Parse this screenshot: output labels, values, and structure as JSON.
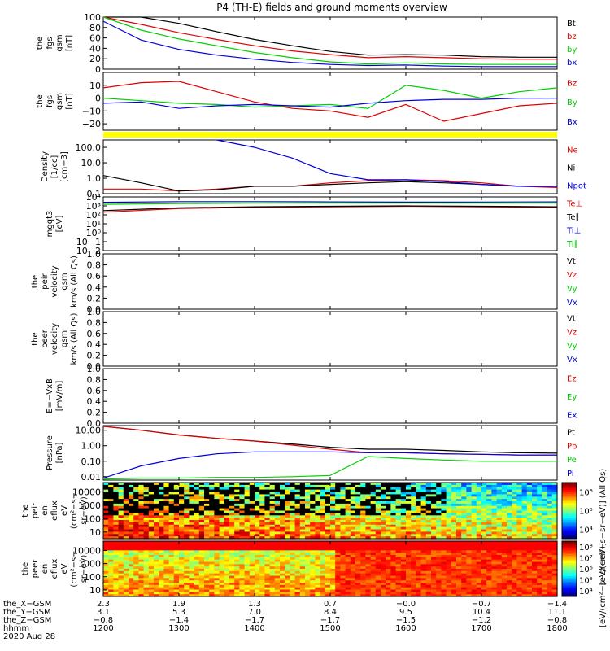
{
  "title": "P4 (TH-E) fields and ground moments overview",
  "colors": {
    "black": "#000000",
    "red": "#e00000",
    "green": "#00d000",
    "blue": "#0000dd",
    "yellow": "#ffff00"
  },
  "chart_data": [
    {
      "id": "fgs-mag",
      "type": "line",
      "ylabel": [
        "the",
        "fgs",
        "gsm",
        "[nT]"
      ],
      "ylim": [
        0,
        100
      ],
      "yticks": [
        "0",
        "20",
        "40",
        "60",
        "80",
        "100"
      ],
      "legend": [
        {
          "name": "Bt",
          "color": "black"
        },
        {
          "name": "bz",
          "color": "red"
        },
        {
          "name": "by",
          "color": "green"
        },
        {
          "name": "bx",
          "color": "blue"
        }
      ],
      "x": [
        1200,
        1250,
        1300,
        1350,
        1400,
        1450,
        1500,
        1550,
        1600,
        1650,
        1700,
        1750,
        1800
      ],
      "series": [
        {
          "name": "Bt",
          "color": "black",
          "values": [
            100,
            100,
            88,
            72,
            57,
            45,
            34,
            27,
            28,
            27,
            24,
            23,
            23
          ]
        },
        {
          "name": "bz",
          "color": "red",
          "values": [
            100,
            86,
            70,
            57,
            45,
            35,
            28,
            22,
            24,
            22,
            20,
            19,
            19
          ]
        },
        {
          "name": "by",
          "color": "green",
          "values": [
            100,
            75,
            58,
            45,
            32,
            22,
            14,
            10,
            12,
            10,
            9,
            9,
            9
          ]
        },
        {
          "name": "bx",
          "color": "blue",
          "values": [
            92,
            56,
            38,
            27,
            19,
            13,
            9,
            7,
            8,
            6,
            5,
            5,
            5
          ]
        }
      ]
    },
    {
      "id": "fgs-comp",
      "type": "line",
      "ylabel": [
        "the",
        "fgs",
        "gsm",
        "[nT]"
      ],
      "ylim": [
        -25,
        20
      ],
      "yticks": [
        "−20",
        "−10",
        "0",
        "10"
      ],
      "legend": [
        {
          "name": "Bz",
          "color": "red"
        },
        {
          "name": "By",
          "color": "green"
        },
        {
          "name": "Bx",
          "color": "blue"
        }
      ],
      "x": [
        1200,
        1250,
        1300,
        1350,
        1400,
        1450,
        1500,
        1550,
        1600,
        1650,
        1700,
        1750,
        1800
      ],
      "series": [
        {
          "name": "Bz",
          "color": "red",
          "values": [
            8,
            12,
            13,
            5,
            -3,
            -8,
            -10,
            -15,
            -5,
            -18,
            -12,
            -6,
            -4
          ]
        },
        {
          "name": "By",
          "color": "green",
          "values": [
            0,
            -2,
            -4,
            -5,
            -7,
            -6,
            -5,
            -8,
            10,
            6,
            0,
            5,
            8
          ]
        },
        {
          "name": "Bx",
          "color": "blue",
          "values": [
            -4,
            -3,
            -8,
            -6,
            -5,
            -6,
            -7,
            -4,
            -2,
            -1,
            -1,
            0,
            0
          ]
        }
      ]
    },
    {
      "id": "density",
      "type": "line",
      "scale": "log",
      "ylabel": [
        "Density",
        "[1/cc]",
        "[cm−3]"
      ],
      "ylim": [
        0.1,
        300
      ],
      "yticks": [
        "0.1",
        "1.0",
        "10.0",
        "100.0"
      ],
      "legend": [
        {
          "name": "Ne",
          "color": "red"
        },
        {
          "name": "Ni",
          "color": "black"
        },
        {
          "name": "Npot",
          "color": "blue"
        }
      ],
      "x": [
        1200,
        1250,
        1300,
        1350,
        1400,
        1450,
        1500,
        1550,
        1600,
        1650,
        1700,
        1750,
        1800
      ],
      "series": [
        {
          "name": "Ne",
          "color": "red",
          "values": [
            0.2,
            0.2,
            0.15,
            0.2,
            0.3,
            0.3,
            0.5,
            0.7,
            0.8,
            0.7,
            0.5,
            0.3,
            0.25
          ]
        },
        {
          "name": "Ni",
          "color": "black",
          "values": [
            1.5,
            0.5,
            0.15,
            0.18,
            0.3,
            0.3,
            0.4,
            0.5,
            0.6,
            0.5,
            0.4,
            0.3,
            0.3
          ]
        },
        {
          "name": "Npot",
          "color": "blue",
          "values": [
            null,
            null,
            null,
            300,
            100,
            20,
            2,
            0.8,
            0.8,
            0.6,
            0.4,
            0.3,
            0.3
          ]
        }
      ]
    },
    {
      "id": "temperature",
      "type": "line",
      "scale": "log",
      "ylabel": [
        "mgqt3",
        "[eV]"
      ],
      "ylim": [
        0.01,
        10000
      ],
      "yticks": [
        "10−2",
        "10−1",
        "10⁰",
        "10¹",
        "10²",
        "10³",
        "10⁴"
      ],
      "legend": [
        {
          "name": "Te⊥",
          "color": "red"
        },
        {
          "name": "Te∥",
          "color": "black"
        },
        {
          "name": "Ti⊥",
          "color": "blue"
        },
        {
          "name": "Ti∥",
          "color": "green"
        }
      ],
      "x": [
        1200,
        1300,
        1400,
        1500,
        1600,
        1700,
        1800
      ],
      "series": [
        {
          "name": "Te⊥",
          "color": "red",
          "values": [
            200,
            500,
            700,
            800,
            900,
            800,
            700
          ]
        },
        {
          "name": "Te∥",
          "color": "black",
          "values": [
            300,
            600,
            800,
            900,
            1000,
            900,
            800
          ]
        },
        {
          "name": "Ti⊥",
          "color": "blue",
          "values": [
            2500,
            3000,
            3000,
            2800,
            2600,
            2700,
            2800
          ]
        },
        {
          "name": "Ti∥",
          "color": "green",
          "values": [
            1500,
            1800,
            2000,
            2000,
            2000,
            2000,
            2000
          ]
        }
      ]
    },
    {
      "id": "peir-velocity",
      "type": "line",
      "ylabel": [
        "the",
        "peir",
        "velocity",
        "gsm",
        "km/s (All Qs)"
      ],
      "ylim": [
        0.0,
        1.0
      ],
      "yticks": [
        "0.0",
        "0.2",
        "0.4",
        "0.6",
        "0.8",
        "1.0"
      ],
      "legend": [
        {
          "name": "Vt",
          "color": "black"
        },
        {
          "name": "Vz",
          "color": "red"
        },
        {
          "name": "Vy",
          "color": "green"
        },
        {
          "name": "Vx",
          "color": "blue"
        }
      ],
      "series": []
    },
    {
      "id": "peer-velocity",
      "type": "line",
      "ylabel": [
        "the",
        "peer",
        "velocity",
        "gsm",
        "km/s (All Qs)"
      ],
      "ylim": [
        0.0,
        1.0
      ],
      "yticks": [
        "0.0",
        "0.2",
        "0.4",
        "0.6",
        "0.8",
        "1.0"
      ],
      "legend": [
        {
          "name": "Vt",
          "color": "black"
        },
        {
          "name": "Vz",
          "color": "red"
        },
        {
          "name": "Vy",
          "color": "green"
        },
        {
          "name": "Vx",
          "color": "blue"
        }
      ],
      "series": []
    },
    {
      "id": "e-field",
      "type": "line",
      "ylabel": [
        "E=−VxB",
        "[mV/m]"
      ],
      "ylim": [
        0.0,
        1.0
      ],
      "yticks": [
        "0.0",
        "0.2",
        "0.4",
        "0.6",
        "0.8",
        "1.0"
      ],
      "legend": [
        {
          "name": "Ez",
          "color": "red"
        },
        {
          "name": "Ey",
          "color": "green"
        },
        {
          "name": "Ex",
          "color": "blue"
        }
      ],
      "series": []
    },
    {
      "id": "pressure",
      "type": "line",
      "scale": "log",
      "ylabel": [
        "Pressure",
        "[nPa]"
      ],
      "ylim": [
        0.006,
        20
      ],
      "yticks": [
        "0.01",
        "0.10",
        "1.00",
        "10.00"
      ],
      "legend": [
        {
          "name": "Pt",
          "color": "black"
        },
        {
          "name": "Pb",
          "color": "red"
        },
        {
          "name": "Pe",
          "color": "green"
        },
        {
          "name": "Pi",
          "color": "blue"
        }
      ],
      "x": [
        1200,
        1250,
        1300,
        1350,
        1400,
        1450,
        1500,
        1550,
        1600,
        1650,
        1700,
        1750,
        1800
      ],
      "series": [
        {
          "name": "Pt",
          "color": "black",
          "values": [
            18,
            10,
            5,
            3,
            2,
            1.3,
            0.8,
            0.6,
            0.6,
            0.5,
            0.4,
            0.35,
            0.33
          ]
        },
        {
          "name": "Pb",
          "color": "red",
          "values": [
            18,
            10,
            5,
            3,
            2,
            1.1,
            0.6,
            0.35,
            0.35,
            0.3,
            0.28,
            0.25,
            0.25
          ]
        },
        {
          "name": "Pe",
          "color": "green",
          "values": [
            0.007,
            0.008,
            0.008,
            0.009,
            0.009,
            0.01,
            0.012,
            0.2,
            0.15,
            0.12,
            0.1,
            0.1,
            0.1
          ]
        },
        {
          "name": "Pi",
          "color": "blue",
          "values": [
            0.008,
            0.05,
            0.15,
            0.3,
            0.4,
            0.4,
            0.4,
            0.35,
            0.35,
            0.3,
            0.28,
            0.25,
            0.25
          ]
        }
      ]
    },
    {
      "id": "peir-eflux",
      "type": "heatmap",
      "ylabel": [
        "the",
        "peir",
        "en",
        "eflux",
        "eV",
        "(cm²−s−",
        "sr−eV)"
      ],
      "ylim": [
        5,
        25000
      ],
      "yticks": [
        "10",
        "100",
        "1000",
        "10000"
      ],
      "colorbar_label": "[eV/(cm²−s−sr−eV)] (All Qs)",
      "colorbar_ticks": [
        "10⁴",
        "10⁵",
        "10⁶"
      ]
    },
    {
      "id": "peer-eflux",
      "type": "heatmap",
      "ylabel": [
        "the",
        "peer",
        "en",
        "eflux",
        "eV",
        "(cm²−s−",
        "sr−eV)"
      ],
      "ylim": [
        5,
        25000
      ],
      "yticks": [
        "10",
        "100",
        "1000",
        "10000"
      ],
      "colorbar_label": "[eV/(cm²−s−sr−eV)]",
      "colorbar_ticks": [
        "10⁴",
        "10⁵",
        "10⁶",
        "10⁷",
        "10⁸"
      ]
    }
  ],
  "xaxis": {
    "rows": [
      {
        "label": "the_X−GSM",
        "values": [
          "2.3",
          "1.9",
          "1.3",
          "0.7",
          "−0.0",
          "−0.7",
          "−1.4"
        ]
      },
      {
        "label": "the_Y−GSM",
        "values": [
          "3.1",
          "5.3",
          "7.0",
          "8.4",
          "9.5",
          "10.4",
          "11.1"
        ]
      },
      {
        "label": "the_Z−GSM",
        "values": [
          "−0.8",
          "−1.4",
          "−1.7",
          "−1.7",
          "−1.5",
          "−1.2",
          "−0.8"
        ]
      },
      {
        "label": "hhmm",
        "values": [
          "1200",
          "1300",
          "1400",
          "1500",
          "1600",
          "1700",
          "1800"
        ]
      }
    ],
    "date": "2020 Aug 28"
  }
}
